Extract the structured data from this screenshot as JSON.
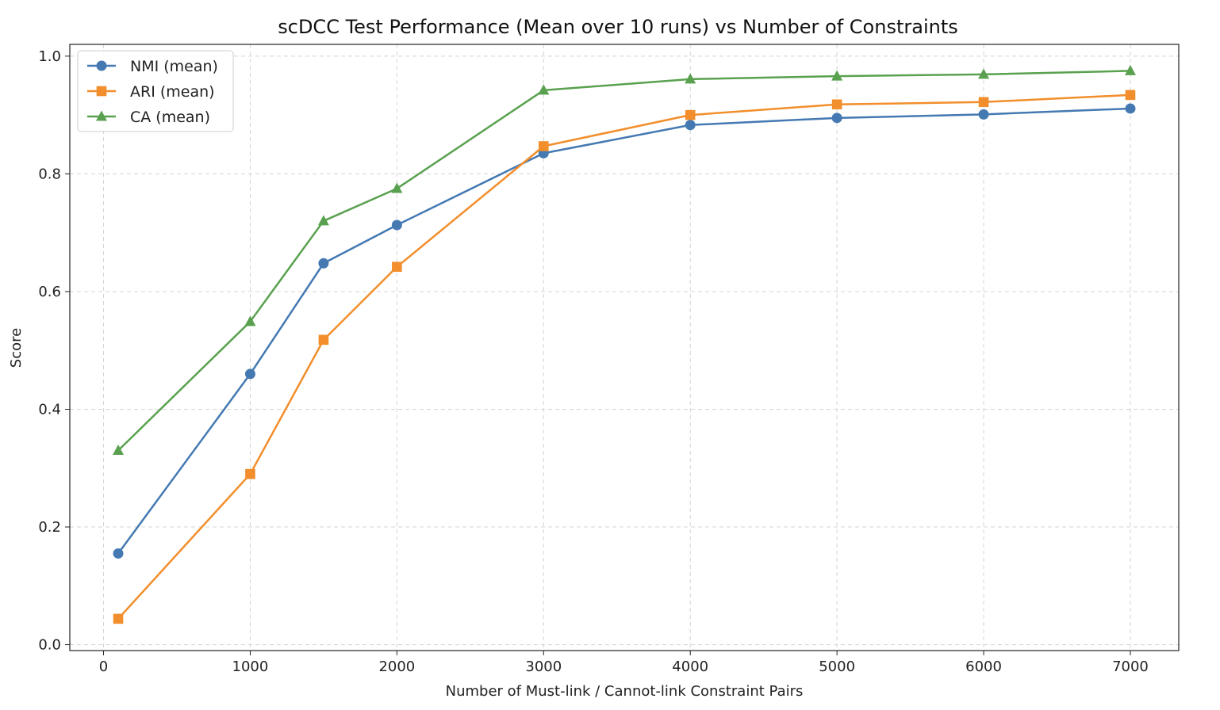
{
  "chart_data": {
    "type": "line",
    "title": "scDCC Test Performance (Mean over 10 runs) vs Number of Constraints",
    "xlabel": "Number of Must-link / Cannot-link Constraint Pairs",
    "ylabel": "Score",
    "x": [
      100,
      1000,
      1500,
      2000,
      3000,
      4000,
      5000,
      6000,
      7000
    ],
    "xlim": [
      -230,
      7330
    ],
    "ylim": [
      -0.01,
      1.02
    ],
    "xticks": [
      0,
      1000,
      2000,
      3000,
      4000,
      5000,
      6000,
      7000
    ],
    "xtick_labels": [
      "0",
      "1000",
      "2000",
      "3000",
      "4000",
      "5000",
      "6000",
      "7000"
    ],
    "yticks": [
      0.0,
      0.2,
      0.4,
      0.6,
      0.8,
      1.0
    ],
    "ytick_labels": [
      "0.0",
      "0.2",
      "0.4",
      "0.6",
      "0.8",
      "1.0"
    ],
    "grid": true,
    "grid_style": "dashed",
    "legend_position": "top-left",
    "series": [
      {
        "name": "NMI (mean)",
        "marker": "circle",
        "color": "#4479b2",
        "values": [
          0.155,
          0.46,
          0.648,
          0.713,
          0.835,
          0.883,
          0.895,
          0.901,
          0.911
        ]
      },
      {
        "name": "ARI (mean)",
        "marker": "square",
        "color": "#f28e2b",
        "values": [
          0.044,
          0.29,
          0.518,
          0.642,
          0.847,
          0.9,
          0.918,
          0.922,
          0.934
        ]
      },
      {
        "name": "CA (mean)",
        "marker": "triangle",
        "color": "#59a14f",
        "values": [
          0.33,
          0.549,
          0.72,
          0.775,
          0.942,
          0.961,
          0.966,
          0.969,
          0.975
        ]
      }
    ]
  }
}
